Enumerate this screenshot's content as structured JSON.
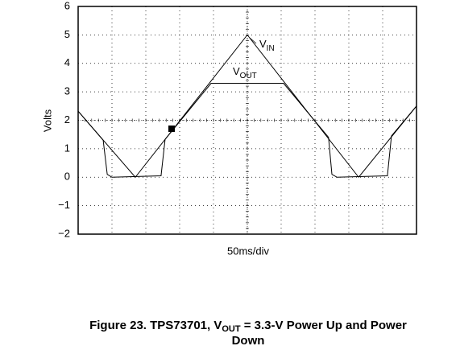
{
  "chart_data": {
    "type": "line",
    "y_label": "Volts",
    "x_label": "50ms/div",
    "caption": [
      "Figure 23. TPS73701, V",
      "OUT",
      " = 3.3-V Power Up and Power",
      "Down"
    ],
    "xlim": [
      0,
      10
    ],
    "ylim": [
      -2,
      6
    ],
    "yticks": [
      {
        "value": -2,
        "label": "−2"
      },
      {
        "value": -1,
        "label": "−1"
      },
      0,
      1,
      2,
      3,
      4,
      5,
      6
    ],
    "grid": true,
    "series": [
      {
        "label": [
          "V",
          "IN"
        ],
        "color": "#000000",
        "x": [
          0,
          1.69,
          5.0,
          8.29,
          10
        ],
        "values": [
          2.32,
          0,
          5,
          0,
          2.5
        ]
      },
      {
        "label": [
          "V",
          "OUT"
        ],
        "color": "#000000",
        "x": [
          0,
          0.74,
          0.86,
          1.0,
          2.45,
          2.57,
          3.93,
          6.07,
          7.4,
          7.5,
          7.65,
          9.14,
          9.26,
          10
        ],
        "values": [
          2.32,
          1.3,
          0.1,
          0,
          0.05,
          1.33,
          3.3,
          3.3,
          1.4,
          0.1,
          0,
          0.05,
          1.45,
          2.5
        ]
      }
    ]
  }
}
